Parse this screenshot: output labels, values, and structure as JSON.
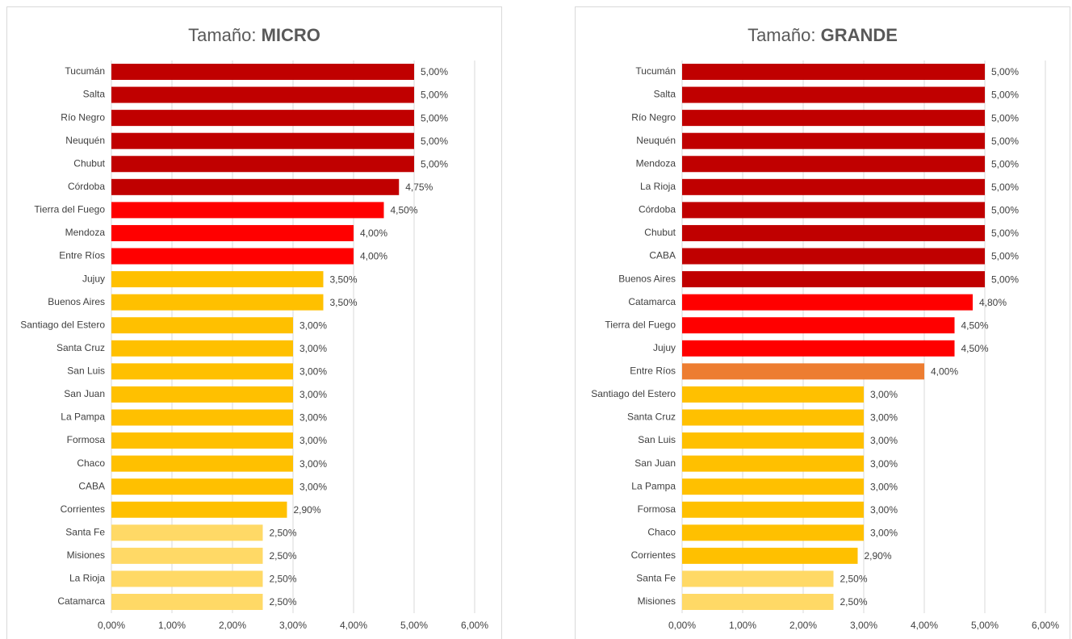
{
  "chart_data": [
    {
      "type": "bar",
      "orientation": "horizontal",
      "title": "Tamaño:",
      "title_bold": "MICRO",
      "categories": [
        "Tucumán",
        "Salta",
        "Río Negro",
        "Neuquén",
        "Chubut",
        "Córdoba",
        "Tierra del Fuego",
        "Mendoza",
        "Entre Ríos",
        "Jujuy",
        "Buenos Aires",
        "Santiago del Estero",
        "Santa Cruz",
        "San Luis",
        "San Juan",
        "La Pampa",
        "Formosa",
        "Chaco",
        "CABA",
        "Corrientes",
        "Santa Fe",
        "Misiones",
        "La Rioja",
        "Catamarca"
      ],
      "values": [
        5,
        5,
        5,
        5,
        5,
        4.75,
        4.5,
        4,
        4,
        3.5,
        3.5,
        3,
        3,
        3,
        3,
        3,
        3,
        3,
        3,
        2.9,
        2.5,
        2.5,
        2.5,
        2.5
      ],
      "value_labels": [
        "5,00%",
        "5,00%",
        "5,00%",
        "5,00%",
        "5,00%",
        "4,75%",
        "4,50%",
        "4,00%",
        "4,00%",
        "3,50%",
        "3,50%",
        "3,00%",
        "3,00%",
        "3,00%",
        "3,00%",
        "3,00%",
        "3,00%",
        "3,00%",
        "3,00%",
        "2,90%",
        "2,50%",
        "2,50%",
        "2,50%",
        "2,50%"
      ],
      "colors": [
        "#c00000",
        "#c00000",
        "#c00000",
        "#c00000",
        "#c00000",
        "#c00000",
        "#ff0000",
        "#ff0000",
        "#ff0000",
        "#ffc000",
        "#ffc000",
        "#ffc000",
        "#ffc000",
        "#ffc000",
        "#ffc000",
        "#ffc000",
        "#ffc000",
        "#ffc000",
        "#ffc000",
        "#ffc000",
        "#ffd966",
        "#ffd966",
        "#ffd966",
        "#ffd966"
      ],
      "xlim": [
        0,
        6
      ],
      "xticks": [
        {
          "value": 0,
          "label": "0,00%"
        },
        {
          "value": 1,
          "label": "1,00%"
        },
        {
          "value": 2,
          "label": "2,00%"
        },
        {
          "value": 3,
          "label": "3,00%"
        },
        {
          "value": 4,
          "label": "4,00%"
        },
        {
          "value": 5,
          "label": "5,00%"
        },
        {
          "value": 6,
          "label": "6,00%"
        }
      ],
      "grid": true
    },
    {
      "type": "bar",
      "orientation": "horizontal",
      "title": "Tamaño:",
      "title_bold": "GRANDE",
      "categories": [
        "Tucumán",
        "Salta",
        "Río Negro",
        "Neuquén",
        "Mendoza",
        "La Rioja",
        "Córdoba",
        "Chubut",
        "CABA",
        "Buenos Aires",
        "Catamarca",
        "Tierra del Fuego",
        "Jujuy",
        "Entre Ríos",
        "Santiago del Estero",
        "Santa Cruz",
        "San Luis",
        "San Juan",
        "La Pampa",
        "Formosa",
        "Chaco",
        "Corrientes",
        "Santa Fe",
        "Misiones"
      ],
      "values": [
        5,
        5,
        5,
        5,
        5,
        5,
        5,
        5,
        5,
        5,
        4.8,
        4.5,
        4.5,
        4,
        3,
        3,
        3,
        3,
        3,
        3,
        3,
        2.9,
        2.5,
        2.5
      ],
      "value_labels": [
        "5,00%",
        "5,00%",
        "5,00%",
        "5,00%",
        "5,00%",
        "5,00%",
        "5,00%",
        "5,00%",
        "5,00%",
        "5,00%",
        "4,80%",
        "4,50%",
        "4,50%",
        "4,00%",
        "3,00%",
        "3,00%",
        "3,00%",
        "3,00%",
        "3,00%",
        "3,00%",
        "3,00%",
        "2,90%",
        "2,50%",
        "2,50%"
      ],
      "colors": [
        "#c00000",
        "#c00000",
        "#c00000",
        "#c00000",
        "#c00000",
        "#c00000",
        "#c00000",
        "#c00000",
        "#c00000",
        "#c00000",
        "#ff0000",
        "#ff0000",
        "#ff0000",
        "#ed7d31",
        "#ffc000",
        "#ffc000",
        "#ffc000",
        "#ffc000",
        "#ffc000",
        "#ffc000",
        "#ffc000",
        "#ffc000",
        "#ffd966",
        "#ffd966"
      ],
      "xlim": [
        0,
        6
      ],
      "xticks": [
        {
          "value": 0,
          "label": "0,00%"
        },
        {
          "value": 1,
          "label": "1,00%"
        },
        {
          "value": 2,
          "label": "2,00%"
        },
        {
          "value": 3,
          "label": "3,00%"
        },
        {
          "value": 4,
          "label": "4,00%"
        },
        {
          "value": 5,
          "label": "5,00%"
        },
        {
          "value": 6,
          "label": "6,00%"
        }
      ],
      "grid": true
    }
  ]
}
